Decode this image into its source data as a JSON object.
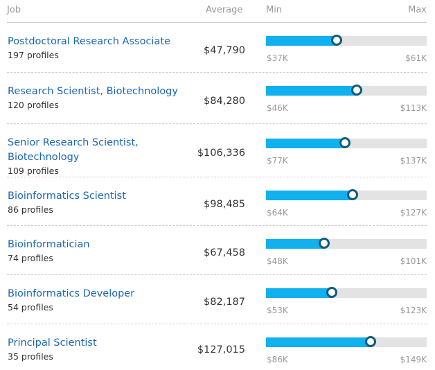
{
  "header": {
    "job": "Job",
    "average": "Average",
    "min": "Min",
    "max": "Max"
  },
  "accent": "#11b0ee",
  "rows": [
    {
      "title": "Postdoctoral Research Associate",
      "profiles": "197 profiles",
      "average": "$47,790",
      "min": "$37K",
      "max": "$61K",
      "fraction": 0.44
    },
    {
      "title": "Research Scientist, Biotechnology",
      "profiles": "120 profiles",
      "average": "$84,280",
      "min": "$46K",
      "max": "$113K",
      "fraction": 0.565
    },
    {
      "title": "Senior Research Scientist, Biotechnology",
      "profiles": "109 profiles",
      "average": "$106,336",
      "min": "$77K",
      "max": "$137K",
      "fraction": 0.49
    },
    {
      "title": "Bioinformatics Scientist",
      "profiles": "86 profiles",
      "average": "$98,485",
      "min": "$64K",
      "max": "$127K",
      "fraction": 0.54
    },
    {
      "title": "Bioinformatician",
      "profiles": "74 profiles",
      "average": "$67,458",
      "min": "$48K",
      "max": "$101K",
      "fraction": 0.36
    },
    {
      "title": "Bioinformatics Developer",
      "profiles": "54 profiles",
      "average": "$82,187",
      "min": "$53K",
      "max": "$123K",
      "fraction": 0.41
    },
    {
      "title": "Principal Scientist",
      "profiles": "35 profiles",
      "average": "$127,015",
      "min": "$86K",
      "max": "$149K",
      "fraction": 0.65
    }
  ]
}
